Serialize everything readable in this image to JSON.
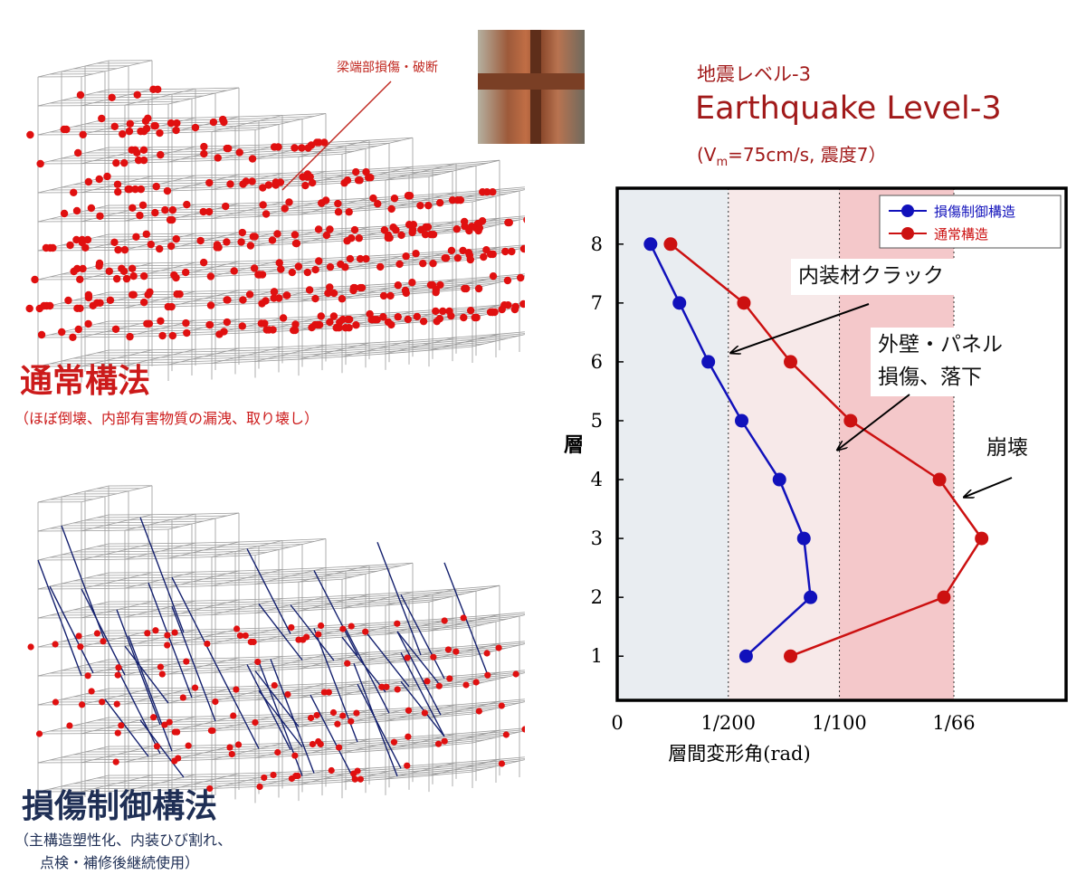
{
  "left_panel": {
    "top_annotation": "梁端部損傷・破断",
    "conventional": {
      "title": "通常構法",
      "subtitle": "（ほぼ倒壊、内部有害物質の漏洩、取り壊し）"
    },
    "controlled": {
      "title": "損傷制御構法",
      "subtitle_line1": "（主構造塑性化、内装ひび割れ、",
      "subtitle_line2": "点検・補修後継続使用）"
    }
  },
  "header": {
    "level_jp": "地震レベル-3",
    "level_en": "Earthquake Level-3",
    "cond_prefix": "(V",
    "cond_sub": "m",
    "cond_suffix": "=75cm/s, 震度7）"
  },
  "colors": {
    "conventional": "#cc1111",
    "controlled": "#1111bb",
    "zone1": "#e9edf1",
    "zone2": "#f7e9e9",
    "zone3": "#f4c8ca",
    "title_red": "#cc1a1a",
    "title_navy": "#1f2f55"
  },
  "chart_data": {
    "type": "line",
    "xlabel": "層間変形角(rad)",
    "ylabel": "層",
    "x_ticks": [
      "0",
      "1/200",
      "1/100",
      "1/66"
    ],
    "x_tick_values": [
      0,
      0.005,
      0.01,
      0.01515
    ],
    "xlim": [
      0,
      0.0202
    ],
    "ylim": [
      0.25,
      8.95
    ],
    "y_ticks": [
      1,
      2,
      3,
      4,
      5,
      6,
      7,
      8
    ],
    "zones": [
      {
        "from": 0,
        "to": 0.005,
        "color": "#e9edf1"
      },
      {
        "from": 0.005,
        "to": 0.01,
        "color": "#f7e9e9"
      },
      {
        "from": 0.01,
        "to": 0.01515,
        "color": "#f4c8ca"
      }
    ],
    "series": [
      {
        "name": "損傷制御構造",
        "color": "#1111bb",
        "floors": [
          1,
          2,
          3,
          4,
          5,
          6,
          7,
          8
        ],
        "x": [
          0.0058,
          0.0087,
          0.0084,
          0.0073,
          0.0056,
          0.0041,
          0.0028,
          0.0015
        ]
      },
      {
        "name": "通常構造",
        "color": "#cc1111",
        "floors": [
          1,
          2,
          3,
          4,
          5,
          6,
          7,
          8
        ],
        "x": [
          0.0078,
          0.0147,
          0.0164,
          0.0145,
          0.0105,
          0.0078,
          0.0057,
          0.0024
        ]
      }
    ],
    "annotations": [
      {
        "lines": [
          "内装材クラック"
        ],
        "target_x": 0.0051,
        "target_floor": 6.15
      },
      {
        "lines": [
          "外壁・パネル",
          "損傷、落下"
        ],
        "target_x": 0.0099,
        "target_floor": 4.5
      },
      {
        "lines": [
          "崩壊"
        ],
        "target_x": 0.0156,
        "target_floor": 3.7
      }
    ],
    "legend_position": "top-right"
  }
}
